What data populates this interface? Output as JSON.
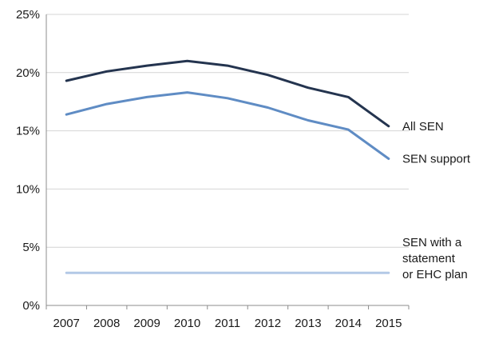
{
  "chart_data": {
    "type": "line",
    "title": "",
    "xlabel": "",
    "ylabel": "",
    "categories": [
      "2007",
      "2008",
      "2009",
      "2010",
      "2011",
      "2012",
      "2013",
      "2014",
      "2015"
    ],
    "y_ticks": [
      "0%",
      "5%",
      "10%",
      "15%",
      "20%",
      "25%"
    ],
    "ylim": [
      0,
      25
    ],
    "grid": true,
    "legend": "labels at line ends (right)",
    "series": [
      {
        "name": "All SEN",
        "label_lines": [
          "All SEN"
        ],
        "color": "#24344f",
        "values": [
          19.3,
          20.1,
          20.6,
          21.0,
          20.6,
          19.8,
          18.7,
          17.9,
          15.4
        ]
      },
      {
        "name": "SEN support",
        "label_lines": [
          "SEN support"
        ],
        "color": "#5f8cc4",
        "values": [
          16.4,
          17.3,
          17.9,
          18.3,
          17.8,
          17.0,
          15.9,
          15.1,
          12.6
        ]
      },
      {
        "name": "SEN with a statement or EHC plan",
        "label_lines": [
          "SEN with a",
          "statement",
          "or EHC plan"
        ],
        "color": "#b3c9e6",
        "values": [
          2.8,
          2.8,
          2.8,
          2.8,
          2.8,
          2.8,
          2.8,
          2.8,
          2.8
        ]
      }
    ]
  }
}
